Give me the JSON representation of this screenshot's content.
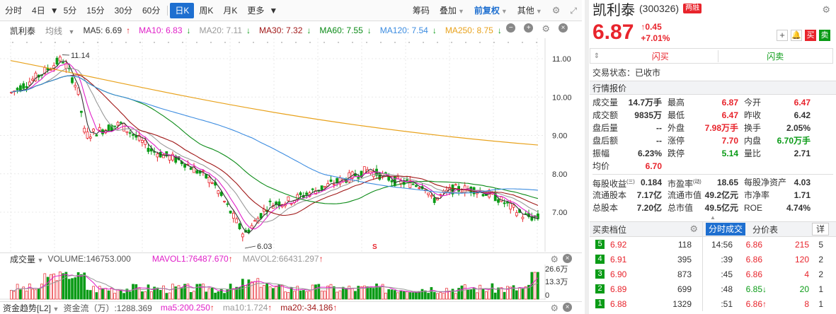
{
  "toolbar": {
    "periods": [
      "分时",
      "4日",
      "5分",
      "15分",
      "30分",
      "60分",
      "日K",
      "周K",
      "月K",
      "更多"
    ],
    "active_period": "日K",
    "right_items": [
      "筹码",
      "叠加",
      "前复权",
      "其他"
    ]
  },
  "chart_header": {
    "stock_name": "凯利泰",
    "ma_type": "均线",
    "ma5": "MA5: 6.69",
    "ma10": "MA10: 6.83",
    "ma20": "MA20: 7.11",
    "ma30": "MA30: 7.32",
    "ma60": "MA60: 7.55",
    "ma120": "MA120: 7.54",
    "ma250": "MA250: 8.75",
    "ma5_arrow": "↑",
    "ma10_arrow": "↓",
    "ma20_arrow": "↓",
    "ma30_arrow": "↓",
    "ma60_arrow": "↓",
    "ma120_arrow": "↓",
    "ma250_arrow": "↓"
  },
  "price_chart": {
    "y_ticks": [
      "11.00",
      "10.00",
      "9.00",
      "8.00",
      "7.00"
    ],
    "high_label": "11.14",
    "low_label": "6.03",
    "s_marker": "S"
  },
  "colors": {
    "up": "#e8242c",
    "down": "#0a9b16",
    "ma5": "#333333",
    "ma10": "#e020c8",
    "ma20": "#999999",
    "ma30": "#a01818",
    "ma60": "#0a8a16",
    "ma120": "#3c8ce0",
    "ma250": "#e8a21c"
  },
  "volume": {
    "title": "成交量",
    "volume": "VOLUME:146753.000",
    "mavol1": "MAVOL1:76487.670",
    "mavol2": "MAVOL2:66431.297",
    "mavol1_arrow": "↑",
    "mavol2_arrow": "↑",
    "y_ticks": [
      "26.6万",
      "13.3万",
      "0"
    ]
  },
  "flow": {
    "title": "资金趋势[L2]",
    "flow": "资金流（万）:1288.369",
    "ma5": "ma5:200.250",
    "ma10": "ma10:1.724",
    "ma20": "ma20:-34.186",
    "ma5_arrow": "↑",
    "ma10_arrow": "↑",
    "ma20_arrow": "↑"
  },
  "quote": {
    "name": "凯利泰",
    "code": "(300326)",
    "badge": "两融",
    "price": "6.87",
    "change": "↑0.45",
    "change_pct": "+7.01%",
    "buy_label": "买",
    "sell_label": "卖",
    "flash_buy": "闪买",
    "flash_sell": "闪卖",
    "status": "交易状态：已收市",
    "section_title": "行情报价"
  },
  "stats": [
    [
      "成交量",
      "14.7万手",
      "最高",
      "6.87",
      "今开",
      "6.47"
    ],
    [
      "成交额",
      "9835万",
      "最低",
      "6.47",
      "昨收",
      "6.42"
    ],
    [
      "盘后量",
      "--",
      "外盘",
      "7.98万手",
      "换手",
      "2.05%"
    ],
    [
      "盘后额",
      "--",
      "涨停",
      "7.70",
      "内盘",
      "6.70万手"
    ],
    [
      "振幅",
      "6.23%",
      "跌停",
      "5.14",
      "量比",
      "2.71"
    ],
    [
      "均价",
      "6.70",
      "",
      "",
      "",
      ""
    ]
  ],
  "fundamentals": [
    [
      "每股收益",
      "0.184",
      "市盈率",
      "18.65",
      "每股净资产",
      "4.03"
    ],
    [
      "流通股本",
      "7.17亿",
      "流通市值",
      "49.2亿元",
      "市净率",
      "1.71"
    ],
    [
      "总股本",
      "7.20亿",
      "总市值",
      "49.5亿元",
      "ROE",
      "4.74%"
    ]
  ],
  "fund_sup": {
    "eps": "(三)",
    "pe": "(动)"
  },
  "orderbook": {
    "title": "买卖档位",
    "levels": [
      {
        "level": "5",
        "price": "6.92",
        "vol": "118"
      },
      {
        "level": "4",
        "price": "6.91",
        "vol": "395"
      },
      {
        "level": "3",
        "price": "6.90",
        "vol": "873"
      },
      {
        "level": "2",
        "price": "6.89",
        "vol": "699"
      },
      {
        "level": "1",
        "price": "6.88",
        "vol": "1329"
      }
    ]
  },
  "ticks": {
    "tab_active": "分时成交",
    "tab_other": "分价表",
    "detail": "详",
    "rows": [
      {
        "time": "14:56",
        "price": "6.86",
        "arrow": "",
        "vol": "215",
        "n": "5",
        "color": "#e8242c"
      },
      {
        "time": ":39",
        "price": "6.86",
        "arrow": "",
        "vol": "120",
        "n": "2",
        "color": "#e8242c"
      },
      {
        "time": ":45",
        "price": "6.86",
        "arrow": "",
        "vol": "4",
        "n": "2",
        "color": "#e8242c"
      },
      {
        "time": ":48",
        "price": "6.85",
        "arrow": "↓",
        "vol": "20",
        "n": "1",
        "color": "#0a9b16"
      },
      {
        "time": ":51",
        "price": "6.86",
        "arrow": "↑",
        "vol": "8",
        "n": "1",
        "color": "#e8242c"
      }
    ]
  }
}
